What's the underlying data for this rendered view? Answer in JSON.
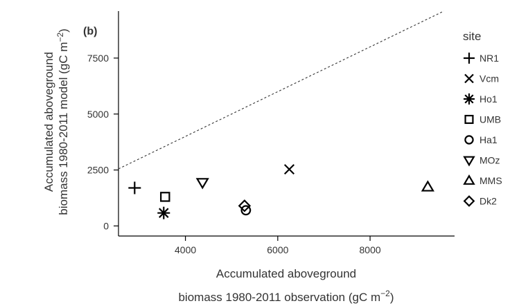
{
  "chart_data": {
    "type": "scatter",
    "panel_label": "(b)",
    "xlabel_line1": "Accumulated aboveground",
    "xlabel_line2_prefix": "biomass 1980-2011 observation (gC m",
    "xlabel_line2_sup": "−2",
    "xlabel_line2_suffix": ")",
    "ylabel_line1": "Accumulated aboveground",
    "ylabel_line2_prefix": "biomass 1980-2011 model (gC m",
    "ylabel_line2_sup": "−2",
    "ylabel_line2_suffix": ")",
    "xlim": [
      2550,
      9830
    ],
    "ylim": [
      -450,
      9600
    ],
    "xticks": [
      4000,
      6000,
      8000
    ],
    "xtick_labels": [
      "4000",
      "6000",
      "8000"
    ],
    "yticks": [
      0,
      2500,
      5000,
      7500
    ],
    "ytick_labels": [
      "0",
      "2500",
      "5000",
      "7500"
    ],
    "reference_line": "1:1",
    "legend_title": "site",
    "legend_position": "right",
    "grid": false,
    "points": [
      {
        "site": "NR1",
        "marker": "plus",
        "x": 2900,
        "y": 1700
      },
      {
        "site": "Vcm",
        "marker": "cross",
        "x": 6250,
        "y": 2530
      },
      {
        "site": "Ho1",
        "marker": "asterisk",
        "x": 3530,
        "y": 580
      },
      {
        "site": "UMB",
        "marker": "square",
        "x": 3560,
        "y": 1300
      },
      {
        "site": "Ha1",
        "marker": "circle",
        "x": 5310,
        "y": 700
      },
      {
        "site": "MOz",
        "marker": "triangle-down",
        "x": 4370,
        "y": 1940
      },
      {
        "site": "MMS",
        "marker": "triangle-up",
        "x": 9250,
        "y": 1740
      },
      {
        "site": "Dk2",
        "marker": "diamond",
        "x": 5280,
        "y": 900
      }
    ]
  }
}
